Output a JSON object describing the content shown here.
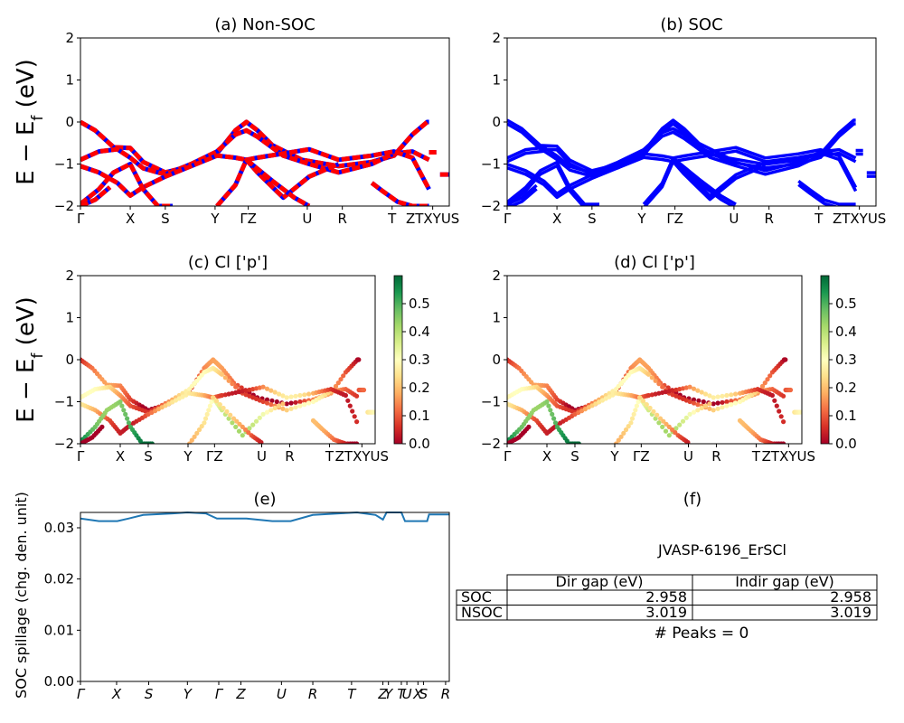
{
  "chart_data": [
    {
      "id": "a",
      "type": "line",
      "title": "(a) Non-SOC",
      "ylabel": "E − E_f (eV)",
      "ylim": [
        -2,
        2
      ],
      "yticks": [
        "2",
        "1",
        "0",
        "−1",
        "−2"
      ],
      "xticks": [
        "Γ",
        "X",
        "S",
        "Y",
        "ΓZ",
        "U",
        "R",
        "T",
        "ZTXYUS"
      ],
      "colors": {
        "spin_up": "#0000ff",
        "spin_down": "#ff0000"
      },
      "path_length": 1.0,
      "series": [
        {
          "x": [
            0,
            0.04,
            0.09,
            0.135,
            0.17,
            0.23,
            0.3,
            0.37,
            0.42,
            0.45,
            0.48,
            0.52,
            0.6,
            0.7,
            0.79,
            0.85,
            0.9,
            0.94,
            0.945
          ],
          "y": [
            0.0,
            -0.2,
            -0.6,
            -0.62,
            -0.95,
            -1.2,
            -1.05,
            -0.75,
            -0.2,
            0.0,
            -0.2,
            -0.55,
            -0.9,
            -1.05,
            -0.95,
            -0.8,
            -0.3,
            0.0,
            0.0
          ]
        },
        {
          "x": [
            0,
            0.05,
            0.1,
            0.135,
            0.17,
            0.23,
            0.3,
            0.37,
            0.42,
            0.45,
            0.48,
            0.55,
            0.62,
            0.7,
            0.79,
            0.85,
            0.9,
            0.945
          ],
          "y": [
            -0.9,
            -0.7,
            -0.65,
            -0.85,
            -1.1,
            -1.25,
            -1.0,
            -0.7,
            -0.3,
            -0.2,
            -0.35,
            -0.8,
            -1.0,
            -1.2,
            -1.0,
            -0.75,
            -0.7,
            -0.9
          ]
        },
        {
          "x": [
            0,
            0.05,
            0.1,
            0.135,
            0.17,
            0.23,
            0.3,
            0.37,
            0.42,
            0.45,
            0.48,
            0.55,
            0.62,
            0.7,
            0.79,
            0.85,
            0.9,
            0.945
          ],
          "y": [
            -1.05,
            -1.2,
            -1.45,
            -1.75,
            -1.55,
            -1.3,
            -1.05,
            -0.8,
            -0.85,
            -0.9,
            -0.85,
            -0.75,
            -0.65,
            -0.9,
            -0.8,
            -0.7,
            -0.85,
            -1.6
          ]
        },
        {
          "x": [
            0,
            0.05,
            0.09,
            0.135,
            0.17,
            0.21,
            0.25
          ],
          "y": [
            -1.95,
            -1.6,
            -1.2,
            -1.0,
            -1.6,
            -2.0,
            -2.0
          ]
        },
        {
          "x": [
            0,
            0.04,
            0.08
          ],
          "y": [
            -2.0,
            -1.85,
            -1.55
          ]
        },
        {
          "x": [
            0.37,
            0.42,
            0.45,
            0.48,
            0.55,
            0.62,
            0.7
          ],
          "y": [
            -2.0,
            -1.5,
            -0.9,
            -1.2,
            -1.8,
            -1.3,
            -1.0
          ]
        },
        {
          "x": [
            0.45,
            0.52,
            0.58,
            0.62
          ],
          "y": [
            -0.9,
            -1.4,
            -1.8,
            -2.0
          ]
        },
        {
          "x": [
            0.79,
            0.82,
            0.86,
            0.9,
            0.945
          ],
          "y": [
            -1.45,
            -1.65,
            -1.9,
            -2.0,
            -2.0
          ]
        },
        {
          "x": [
            0.945,
            0.965
          ],
          "y": [
            -0.72,
            -0.72
          ]
        },
        {
          "x": [
            0.975,
            1.0
          ],
          "y": [
            -1.25,
            -1.25
          ]
        }
      ]
    },
    {
      "id": "b",
      "type": "line",
      "title": "(b) SOC",
      "ylabel": "",
      "ylim": [
        -2,
        2
      ],
      "yticks": [
        "2",
        "1",
        "0",
        "−1",
        "−2"
      ],
      "xticks": [
        "Γ",
        "X",
        "S",
        "Y",
        "ΓZ",
        "U",
        "R",
        "T",
        "ZTXYUS"
      ],
      "colors": {
        "band": "#0000ff"
      },
      "path_length": 1.0
    },
    {
      "id": "c",
      "type": "scatter",
      "title": "(c)  Cl ['p']",
      "ylabel": "E − E_f (eV)",
      "ylim": [
        -2,
        2
      ],
      "yticks": [
        "2",
        "1",
        "0",
        "−1",
        "−2"
      ],
      "xticks": [
        "Γ",
        "X",
        "S",
        "Y",
        "ΓZ",
        "U",
        "R",
        "T",
        "ZTXYUS"
      ],
      "colorbar": {
        "min": 0.0,
        "max": 0.6,
        "ticks": [
          "0.0",
          "0.1",
          "0.2",
          "0.3",
          "0.4",
          "0.5"
        ],
        "colormap": "RdYlGn"
      },
      "band_weights": [
        0.05,
        0.18,
        0.15,
        0.55,
        0.1,
        0.3,
        0.12,
        0.08,
        0.2,
        0.2
      ]
    },
    {
      "id": "d",
      "type": "scatter",
      "title": "(d) Cl ['p']",
      "ylabel": "",
      "ylim": [
        -2,
        2
      ],
      "yticks": [
        "2",
        "1",
        "0",
        "−1",
        "−2"
      ],
      "xticks": [
        "Γ",
        "X",
        "S",
        "Y",
        "ΓZ",
        "U",
        "R",
        "T",
        "ZTXYUS"
      ],
      "colorbar": {
        "min": 0.0,
        "max": 0.6,
        "ticks": [
          "0.0",
          "0.1",
          "0.2",
          "0.3",
          "0.4",
          "0.5"
        ],
        "colormap": "RdYlGn"
      },
      "band_weights": [
        0.05,
        0.18,
        0.15,
        0.55,
        0.1,
        0.3,
        0.12,
        0.08,
        0.2,
        0.2
      ]
    },
    {
      "id": "e",
      "type": "line",
      "title": "(e)",
      "ylabel": "SOC spillage (chg. den. unit)",
      "ylim": [
        0.0,
        0.033
      ],
      "yticks": [
        "0.03",
        "0.02",
        "0.01",
        "0.00"
      ],
      "ytick_values": [
        0.03,
        0.02,
        0.01,
        0.0
      ],
      "xticks": [
        "Γ",
        "X",
        "S",
        "Y",
        "Γ",
        "Z",
        "U",
        "R",
        "T",
        "Z",
        "Y",
        "T",
        "U",
        "X",
        "S",
        "R"
      ],
      "xtick_positions": [
        0.0,
        0.098,
        0.185,
        0.29,
        0.375,
        0.435,
        0.545,
        0.63,
        0.735,
        0.82,
        0.835,
        0.87,
        0.885,
        0.915,
        0.93,
        0.99
      ],
      "colors": {
        "line": "#1f77b4"
      },
      "series": [
        {
          "x": [
            0.0,
            0.05,
            0.1,
            0.13,
            0.17,
            0.25,
            0.29,
            0.34,
            0.37,
            0.45,
            0.52,
            0.57,
            0.63,
            0.7,
            0.75,
            0.8,
            0.82,
            0.83,
            0.87,
            0.88,
            0.89,
            0.94,
            0.945,
            1.0
          ],
          "y": [
            0.0318,
            0.0313,
            0.0313,
            0.0318,
            0.0325,
            0.0328,
            0.033,
            0.0328,
            0.0318,
            0.0318,
            0.0313,
            0.0313,
            0.0325,
            0.0328,
            0.033,
            0.0325,
            0.0316,
            0.033,
            0.033,
            0.0313,
            0.0313,
            0.0313,
            0.0326,
            0.0326
          ]
        }
      ]
    }
  ],
  "panel_f": {
    "title": "(f)",
    "material": "JVASP-6196_ErSCl",
    "headers": [
      "Dir gap (eV)",
      "Indir gap (eV)"
    ],
    "rows": [
      {
        "label": "SOC",
        "dir": "2.958",
        "indir": "2.958"
      },
      {
        "label": "NSOC",
        "dir": "3.019",
        "indir": "3.019"
      }
    ],
    "peaks": "# Peaks = 0"
  }
}
